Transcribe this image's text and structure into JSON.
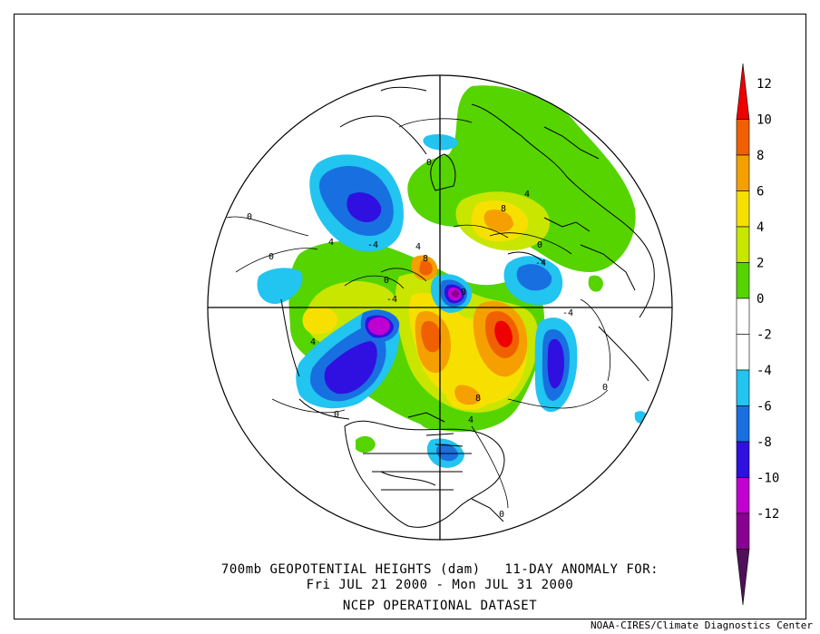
{
  "title_lines": [
    "700mb GEOPOTENTIAL HEIGHTS (dam)   11-DAY ANOMALY FOR:",
    "Fri JUL 21 2000 - Mon JUL 31 2000",
    "NCEP OPERATIONAL DATASET"
  ],
  "credit": "NOAA-CIRES/Climate Diagnostics Center",
  "colorbar": {
    "levels": [
      {
        "from": 12,
        "to": 14,
        "color": "#ee0000"
      },
      {
        "from": 10,
        "to": 12,
        "color": "#f06000"
      },
      {
        "from": 8,
        "to": 10,
        "color": "#f5a000"
      },
      {
        "from": 6,
        "to": 8,
        "color": "#f7e000"
      },
      {
        "from": 4,
        "to": 6,
        "color": "#c8e600"
      },
      {
        "from": 2,
        "to": 4,
        "color": "#55d400"
      },
      {
        "from": 0,
        "to": 2,
        "color": "#ffffff"
      },
      {
        "from": -2,
        "to": 0,
        "color": "#ffffff"
      },
      {
        "from": -4,
        "to": -2,
        "color": "#22c4f0"
      },
      {
        "from": -6,
        "to": -4,
        "color": "#1870e0"
      },
      {
        "from": -8,
        "to": -6,
        "color": "#3010e0"
      },
      {
        "from": -10,
        "to": -8,
        "color": "#c000d0"
      },
      {
        "from": -12,
        "to": -10,
        "color": "#8a0090"
      },
      {
        "from": -14,
        "to": -12,
        "color": "#50105a"
      }
    ],
    "tick_labels": [
      "12",
      "10",
      "8",
      "6",
      "4",
      "2",
      "0",
      "-2",
      "-4",
      "-6",
      "-8",
      "-10",
      "-12"
    ]
  },
  "contour_labels": [
    {
      "text": "0"
    },
    {
      "text": "0"
    },
    {
      "text": "0"
    },
    {
      "text": "0"
    },
    {
      "text": "0"
    },
    {
      "text": "0"
    },
    {
      "text": "0"
    },
    {
      "text": "0"
    },
    {
      "text": "4"
    },
    {
      "text": "4"
    },
    {
      "text": "4"
    },
    {
      "text": "4"
    },
    {
      "text": "4"
    },
    {
      "text": "-4"
    },
    {
      "text": "-4"
    },
    {
      "text": "-4"
    },
    {
      "text": "-4"
    },
    {
      "text": "8"
    },
    {
      "text": "8"
    },
    {
      "text": "8"
    },
    {
      "text": "0"
    }
  ]
}
